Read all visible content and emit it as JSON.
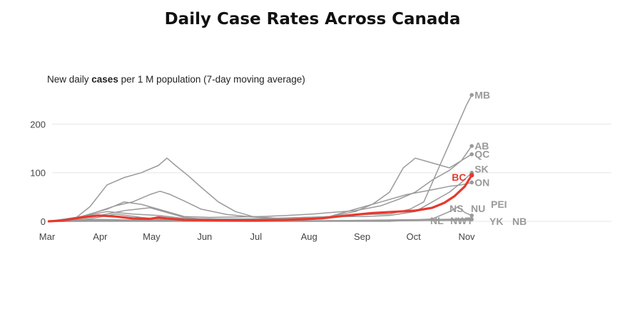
{
  "chart_data": {
    "type": "line",
    "title": "Daily Case Rates Across Canada",
    "subtitle_pre": "New daily ",
    "subtitle_bold": "cases",
    "subtitle_post": " per 1 M population (7-day  moving average)",
    "x_ticks": [
      "Mar",
      "Apr",
      "May",
      "Jun",
      "Jul",
      "Aug",
      "Sep",
      "Oct",
      "Nov"
    ],
    "y_ticks": [
      0,
      100,
      200
    ],
    "ylim": [
      0,
      270
    ],
    "grid": true,
    "highlight_color": "#e8382d",
    "other_color": "#9a9a9a",
    "series": [
      {
        "name": "MB",
        "highlight": false,
        "points": [
          [
            1,
            0
          ],
          [
            30,
            1
          ],
          [
            45,
            2
          ],
          [
            60,
            3
          ],
          [
            90,
            3
          ],
          [
            120,
            4
          ],
          [
            150,
            8
          ],
          [
            170,
            10
          ],
          [
            185,
            14
          ],
          [
            200,
            15
          ],
          [
            212,
            25
          ],
          [
            220,
            40
          ],
          [
            225,
            80
          ],
          [
            230,
            120
          ],
          [
            235,
            160
          ],
          [
            240,
            200
          ],
          [
            245,
            240
          ],
          [
            248,
            260
          ]
        ]
      },
      {
        "name": "AB",
        "highlight": false,
        "points": [
          [
            1,
            0
          ],
          [
            15,
            3
          ],
          [
            25,
            15
          ],
          [
            35,
            25
          ],
          [
            45,
            40
          ],
          [
            55,
            35
          ],
          [
            65,
            25
          ],
          [
            80,
            10
          ],
          [
            95,
            8
          ],
          [
            110,
            9
          ],
          [
            125,
            10
          ],
          [
            140,
            12
          ],
          [
            155,
            15
          ],
          [
            165,
            18
          ],
          [
            180,
            22
          ],
          [
            195,
            32
          ],
          [
            205,
            45
          ],
          [
            215,
            60
          ],
          [
            225,
            85
          ],
          [
            235,
            105
          ],
          [
            242,
            125
          ],
          [
            248,
            155
          ]
        ]
      },
      {
        "name": "QC",
        "highlight": false,
        "points": [
          [
            1,
            0
          ],
          [
            15,
            2
          ],
          [
            25,
            30
          ],
          [
            35,
            75
          ],
          [
            45,
            90
          ],
          [
            55,
            100
          ],
          [
            65,
            115
          ],
          [
            70,
            130
          ],
          [
            75,
            115
          ],
          [
            82,
            95
          ],
          [
            90,
            70
          ],
          [
            100,
            40
          ],
          [
            110,
            20
          ],
          [
            120,
            10
          ],
          [
            135,
            6
          ],
          [
            150,
            7
          ],
          [
            165,
            10
          ],
          [
            180,
            20
          ],
          [
            190,
            35
          ],
          [
            200,
            60
          ],
          [
            208,
            110
          ],
          [
            215,
            130
          ],
          [
            225,
            120
          ],
          [
            235,
            110
          ],
          [
            242,
            125
          ],
          [
            248,
            138
          ]
        ]
      },
      {
        "name": "SK",
        "highlight": false,
        "points": [
          [
            1,
            0
          ],
          [
            20,
            10
          ],
          [
            35,
            20
          ],
          [
            50,
            15
          ],
          [
            65,
            12
          ],
          [
            80,
            6
          ],
          [
            100,
            5
          ],
          [
            115,
            5
          ],
          [
            130,
            6
          ],
          [
            150,
            8
          ],
          [
            170,
            10
          ],
          [
            185,
            10
          ],
          [
            200,
            12
          ],
          [
            215,
            20
          ],
          [
            225,
            40
          ],
          [
            235,
            60
          ],
          [
            242,
            80
          ],
          [
            248,
            100
          ]
        ]
      },
      {
        "name": "ON",
        "highlight": false,
        "points": [
          [
            1,
            0
          ],
          [
            15,
            5
          ],
          [
            28,
            18
          ],
          [
            40,
            32
          ],
          [
            50,
            40
          ],
          [
            60,
            55
          ],
          [
            66,
            62
          ],
          [
            72,
            55
          ],
          [
            80,
            42
          ],
          [
            90,
            25
          ],
          [
            105,
            14
          ],
          [
            120,
            9
          ],
          [
            135,
            6
          ],
          [
            150,
            7
          ],
          [
            165,
            10
          ],
          [
            180,
            25
          ],
          [
            195,
            40
          ],
          [
            210,
            55
          ],
          [
            225,
            65
          ],
          [
            235,
            72
          ],
          [
            242,
            75
          ],
          [
            248,
            80
          ]
        ]
      },
      {
        "name": "PEI",
        "highlight": false,
        "points": [
          [
            1,
            0
          ],
          [
            30,
            4
          ],
          [
            60,
            2
          ],
          [
            100,
            1
          ],
          [
            150,
            1
          ],
          [
            200,
            2
          ],
          [
            230,
            3
          ],
          [
            248,
            6
          ]
        ]
      },
      {
        "name": "NS",
        "highlight": false,
        "points": [
          [
            1,
            0
          ],
          [
            25,
            8
          ],
          [
            45,
            22
          ],
          [
            60,
            28
          ],
          [
            70,
            18
          ],
          [
            80,
            8
          ],
          [
            100,
            2
          ],
          [
            150,
            1
          ],
          [
            200,
            2
          ],
          [
            230,
            4
          ],
          [
            248,
            5
          ]
        ]
      },
      {
        "name": "NU",
        "highlight": false,
        "points": [
          [
            1,
            0
          ],
          [
            200,
            0
          ],
          [
            225,
            5
          ],
          [
            235,
            20
          ],
          [
            240,
            30
          ],
          [
            244,
            18
          ],
          [
            248,
            12
          ]
        ]
      },
      {
        "name": "NL",
        "highlight": false,
        "points": [
          [
            1,
            0
          ],
          [
            25,
            5
          ],
          [
            40,
            15
          ],
          [
            55,
            8
          ],
          [
            70,
            3
          ],
          [
            100,
            1
          ],
          [
            150,
            0
          ],
          [
            200,
            1
          ],
          [
            230,
            2
          ],
          [
            248,
            3
          ]
        ]
      },
      {
        "name": "NWT",
        "highlight": false,
        "points": [
          [
            1,
            0
          ],
          [
            60,
            1
          ],
          [
            120,
            0
          ],
          [
            180,
            1
          ],
          [
            230,
            2
          ],
          [
            248,
            2
          ]
        ]
      },
      {
        "name": "YK",
        "highlight": false,
        "points": [
          [
            1,
            0
          ],
          [
            60,
            1
          ],
          [
            120,
            0
          ],
          [
            180,
            1
          ],
          [
            230,
            2
          ],
          [
            248,
            2
          ]
        ]
      },
      {
        "name": "NB",
        "highlight": false,
        "points": [
          [
            1,
            0
          ],
          [
            40,
            3
          ],
          [
            80,
            1
          ],
          [
            120,
            2
          ],
          [
            160,
            1
          ],
          [
            200,
            3
          ],
          [
            230,
            4
          ],
          [
            248,
            4
          ]
        ]
      },
      {
        "name": "BC",
        "highlight": true,
        "points": [
          [
            1,
            0
          ],
          [
            10,
            2
          ],
          [
            20,
            8
          ],
          [
            30,
            12
          ],
          [
            40,
            10
          ],
          [
            50,
            6
          ],
          [
            60,
            5
          ],
          [
            65,
            8
          ],
          [
            70,
            6
          ],
          [
            80,
            3
          ],
          [
            100,
            2
          ],
          [
            120,
            2
          ],
          [
            140,
            3
          ],
          [
            160,
            6
          ],
          [
            175,
            12
          ],
          [
            190,
            17
          ],
          [
            205,
            20
          ],
          [
            215,
            22
          ],
          [
            225,
            28
          ],
          [
            232,
            38
          ],
          [
            238,
            52
          ],
          [
            244,
            72
          ],
          [
            248,
            95
          ]
        ]
      }
    ]
  }
}
